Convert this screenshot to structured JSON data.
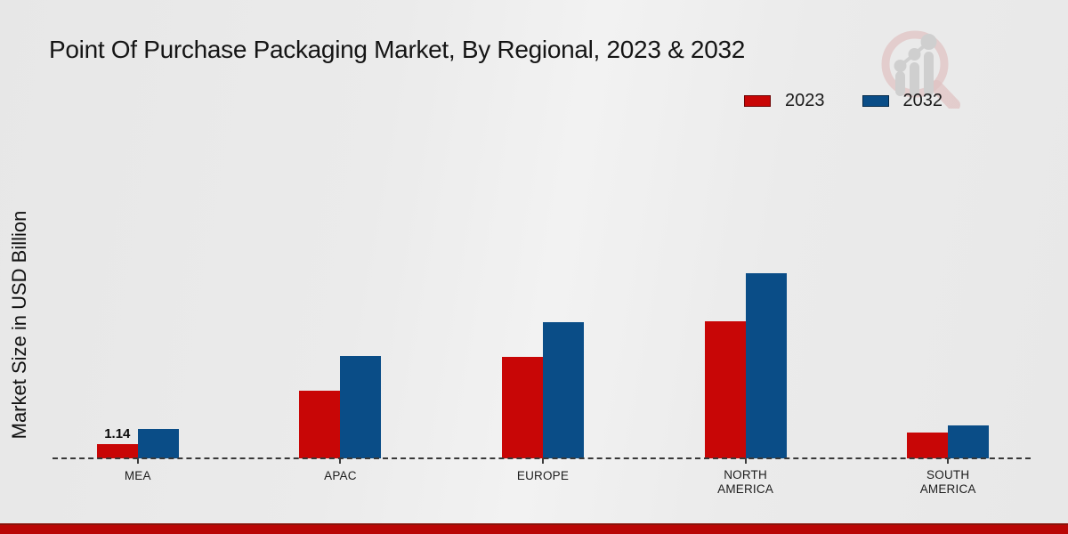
{
  "title": "Point Of Purchase Packaging Market, By Regional, 2023 & 2032",
  "ylabel": "Market Size in USD Billion",
  "colors": {
    "series_2023": "#c80606",
    "series_2032": "#0a4d87",
    "background": "#eaeaea",
    "baseline": "#383838",
    "footer_strip": "#ba0605",
    "text": "#151515"
  },
  "chart_data": {
    "type": "bar",
    "title": "Point Of Purchase Packaging Market, By Regional, 2023 & 2032",
    "xlabel": "",
    "ylabel": "Market Size in USD Billion",
    "categories": [
      "MEA",
      "APAC",
      "EUROPE",
      "NORTH AMERICA",
      "SOUTH AMERICA"
    ],
    "series": [
      {
        "name": "2023",
        "color": "#c80606",
        "values": [
          1.14,
          5.42,
          8.12,
          10.97,
          2.07
        ]
      },
      {
        "name": "2032",
        "color": "#0a4d87",
        "values": [
          2.35,
          8.19,
          10.9,
          14.82,
          2.64
        ]
      }
    ],
    "bar_label": {
      "text": "1.14",
      "category_index": 0,
      "series_index": 0
    },
    "ylim": [
      0,
      16
    ],
    "grid": false,
    "legend_position": "top-right",
    "baseline_style": "dashed"
  }
}
